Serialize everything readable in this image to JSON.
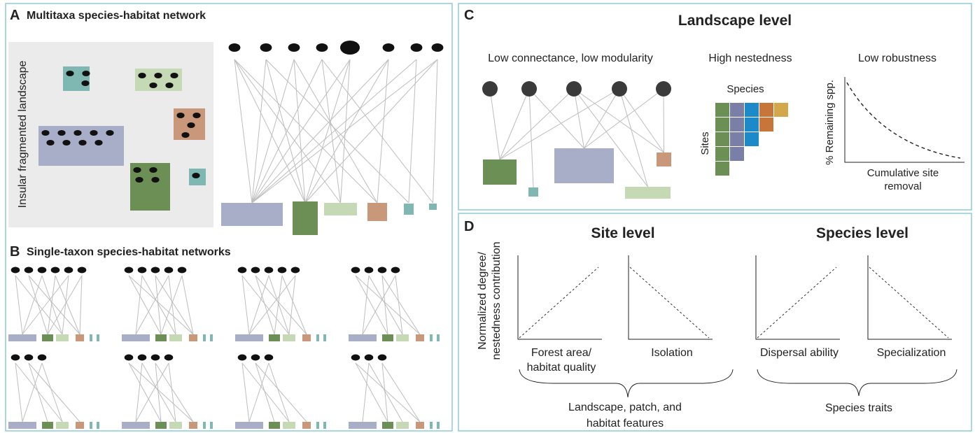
{
  "panels": {
    "a": {
      "letter": "A",
      "title": "Multitaxa species-habitat network",
      "landscape_label": "Insular fragmented landscape"
    },
    "b": {
      "letter": "B",
      "title": "Single-taxon species-habitat networks"
    },
    "c": {
      "letter": "C",
      "title": "Landscape level",
      "network_label": "Low connectance, low modularity",
      "nestedness_label": "High nestedness",
      "species_label": "Species",
      "sites_label": "Sites",
      "robustness_label": "Low robustness",
      "robustness_y_axis": "% Remaining spp.",
      "robustness_x_axis": [
        "Cumulative site",
        "removal"
      ]
    },
    "d": {
      "letter": "D",
      "site_title": "Site level",
      "species_title": "Species level",
      "y_axis": [
        "Normalized degree/",
        "nestedness contribution"
      ],
      "plots": [
        {
          "x_axis": [
            "Forest area/",
            "habitat quality"
          ]
        },
        {
          "x_axis": [
            "Isolation"
          ]
        },
        {
          "x_axis": [
            "Dispersal ability"
          ]
        },
        {
          "x_axis": [
            "Specialization"
          ]
        }
      ],
      "groups": [
        {
          "label": [
            "Landscape, patch, and",
            "habitat features"
          ]
        },
        {
          "label": [
            "Species traits"
          ]
        }
      ]
    }
  }
}
